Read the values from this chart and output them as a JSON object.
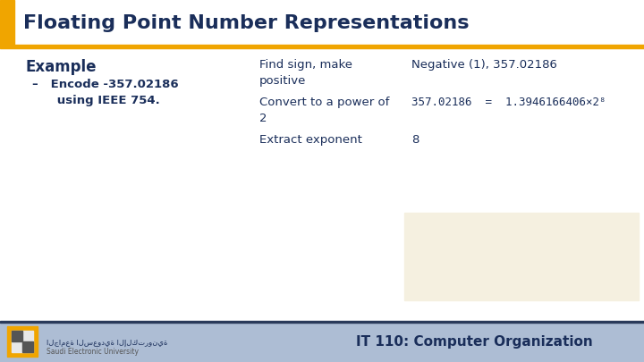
{
  "title": "Floating Point Number Representations",
  "title_color": "#1a2e5a",
  "header_bar_color": "#f0a500",
  "slide_bg": "#ffffff",
  "footer_bg": "#adbdd4",
  "footer_text": "IT 110: Computer Organization",
  "footer_text_color": "#1a2e5a",
  "example_label": "Example",
  "bullet_line1": "–   Encode -357.02186",
  "bullet_line2": "      using IEEE 754.",
  "col1_row1": "Find sign, make\npositive",
  "col1_row2": "Convert to a power of\n2",
  "col1_row3": "Extract exponent",
  "col2_row1": "Negative (1), 357.02186",
  "col2_row2": "357.02186  =  1.3946166406×2⁸",
  "col2_row3": "8",
  "text_color": "#1a2e5a",
  "beige_box_color": "#f5f0e0",
  "left_accent_color": "#f0a500",
  "dark_line_color": "#2a3a5a"
}
